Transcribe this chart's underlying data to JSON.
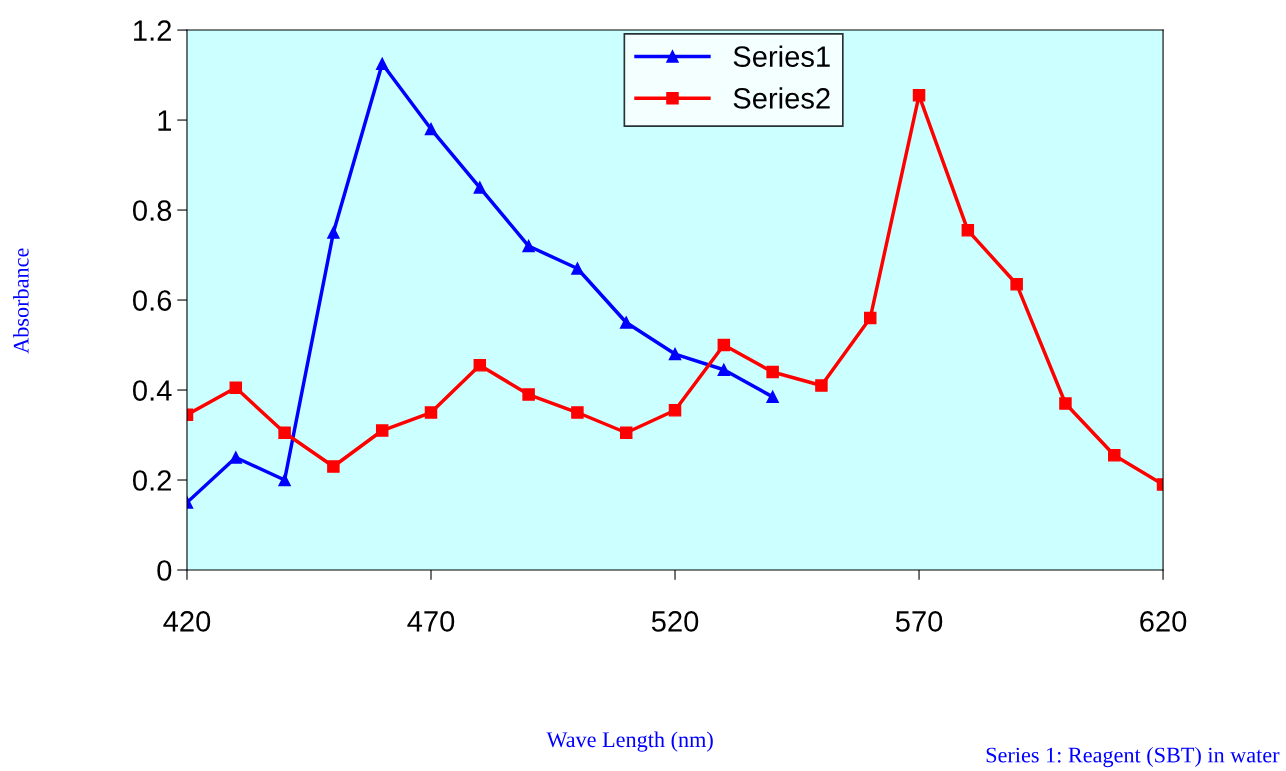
{
  "chart_data": {
    "type": "line",
    "xlabel": "Wave Length (nm)",
    "ylabel": "Absorbance",
    "annotations": [
      "Series 1: Reagent (SBT) in water"
    ],
    "xlim": [
      420,
      620
    ],
    "xticks": [
      420,
      470,
      520,
      570,
      620
    ],
    "ylim": [
      0,
      1.2
    ],
    "yticks": [
      0,
      0.2,
      0.4,
      0.6,
      0.8,
      1,
      {
        "value": 1.2,
        "label": "1.2"
      }
    ],
    "grid": false,
    "legend": "top",
    "line_style": "solid",
    "series": [
      {
        "name": "Series1",
        "color": "#0000ff",
        "marker": "triangle",
        "x": [
          420,
          430,
          440,
          450,
          460,
          470,
          480,
          490,
          500,
          510,
          520,
          530,
          540
        ],
        "values": [
          0.15,
          0.25,
          0.2,
          0.75,
          1.125,
          0.98,
          0.85,
          0.72,
          0.67,
          0.55,
          0.48,
          0.445,
          0.385
        ]
      },
      {
        "name": "Series2",
        "color": "#ff0000",
        "marker": "square",
        "x": [
          420,
          430,
          440,
          450,
          460,
          470,
          480,
          490,
          500,
          510,
          520,
          530,
          540,
          550,
          560,
          570,
          580,
          590,
          600,
          610,
          620
        ],
        "values": [
          0.345,
          0.405,
          0.305,
          0.23,
          0.31,
          0.35,
          0.455,
          0.39,
          0.35,
          0.305,
          0.355,
          0.5,
          0.44,
          0.41,
          0.56,
          1.055,
          0.755,
          0.635,
          0.37,
          0.255,
          0.19
        ]
      }
    ]
  }
}
